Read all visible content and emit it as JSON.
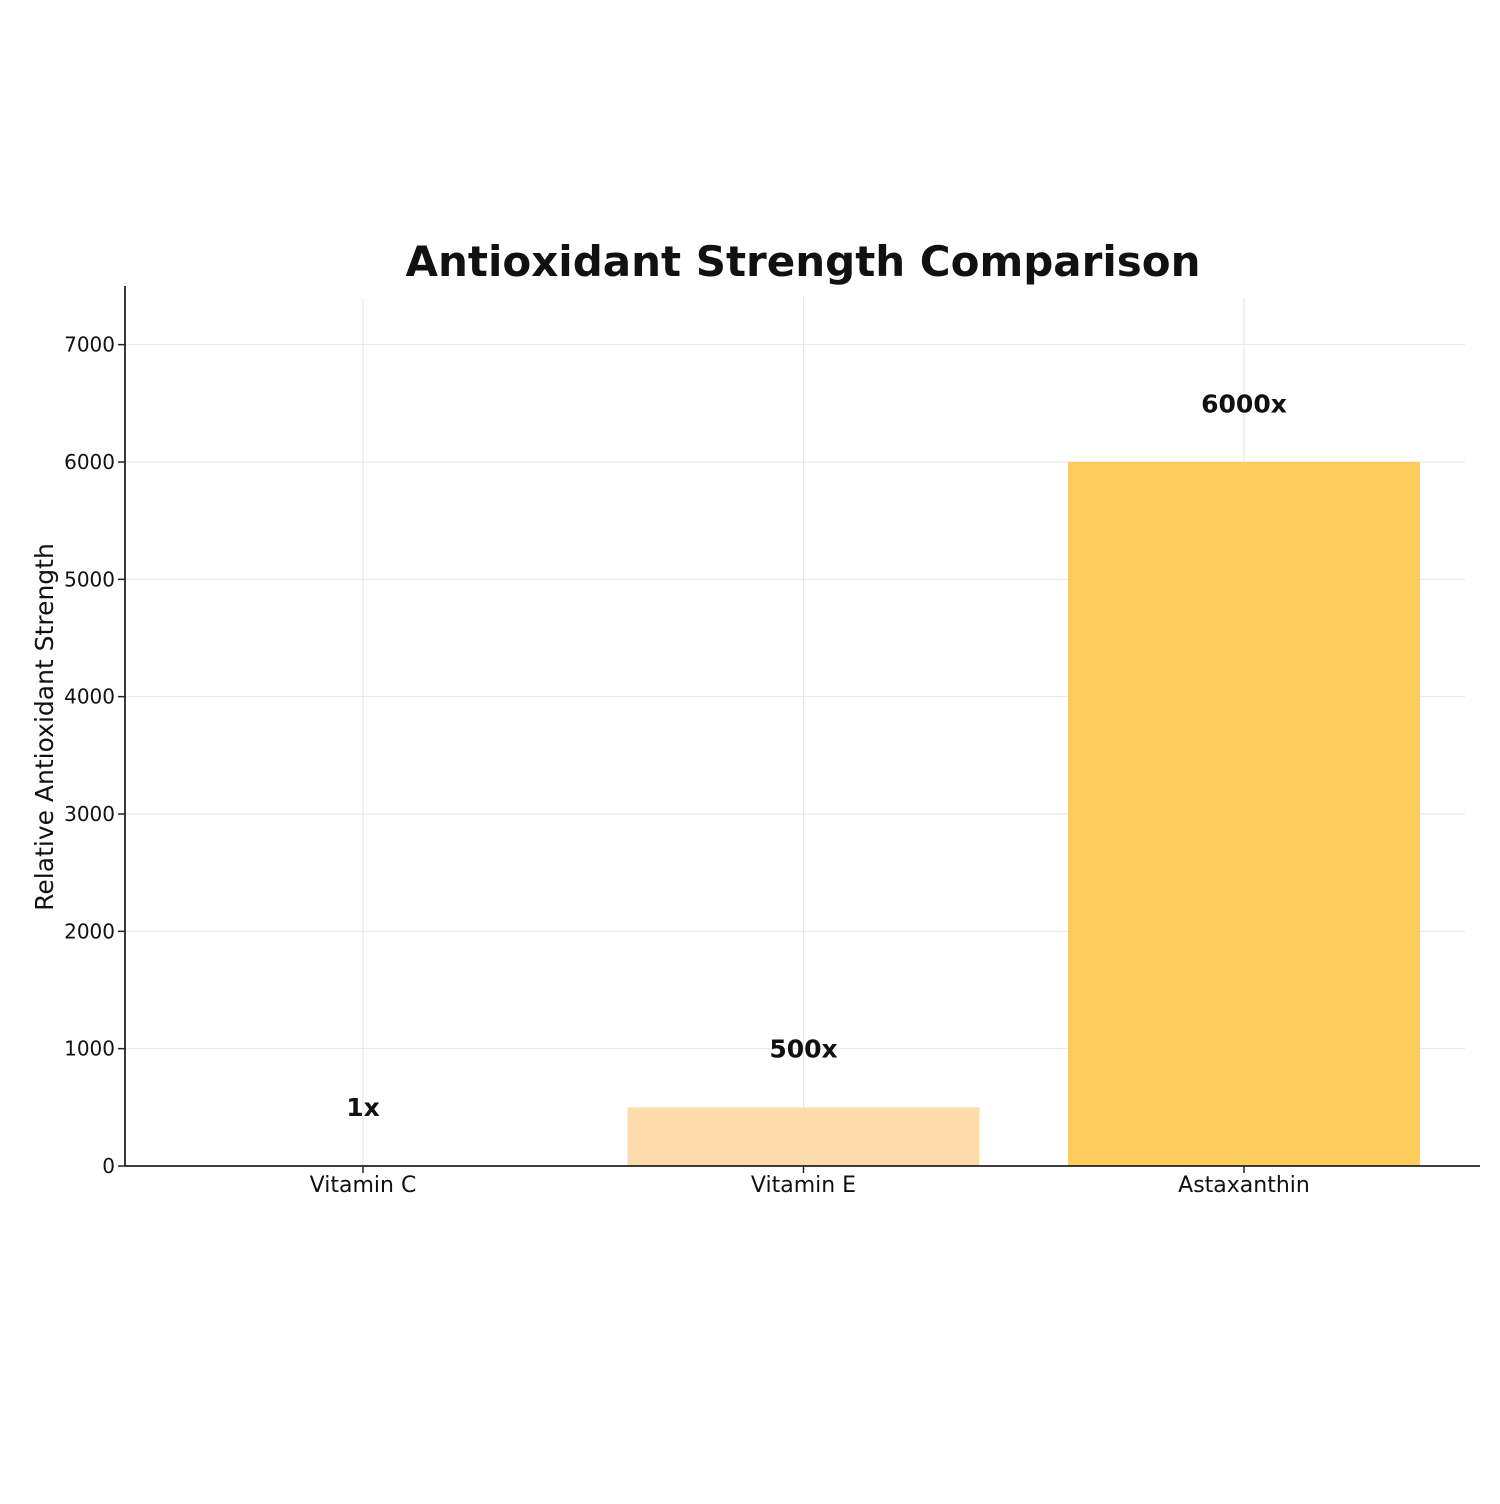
{
  "chart_data": {
    "type": "bar",
    "title": "Antioxidant Strength Comparison",
    "xlabel": "",
    "ylabel": "Relative Antioxidant Strength",
    "categories": [
      "Vitamin C",
      "Vitamin E",
      "Astaxanthin"
    ],
    "values": [
      1,
      500,
      6000
    ],
    "data_labels": [
      "1x",
      "500x",
      "6000x"
    ],
    "colors": [
      "#ffd9a3",
      "#fdd9a5",
      "#fcc954"
    ],
    "ylim": [
      0,
      7500
    ],
    "yticks": [
      0,
      1000,
      2000,
      3000,
      4000,
      5000,
      6000,
      7000
    ],
    "grid": true,
    "legend": "none"
  }
}
